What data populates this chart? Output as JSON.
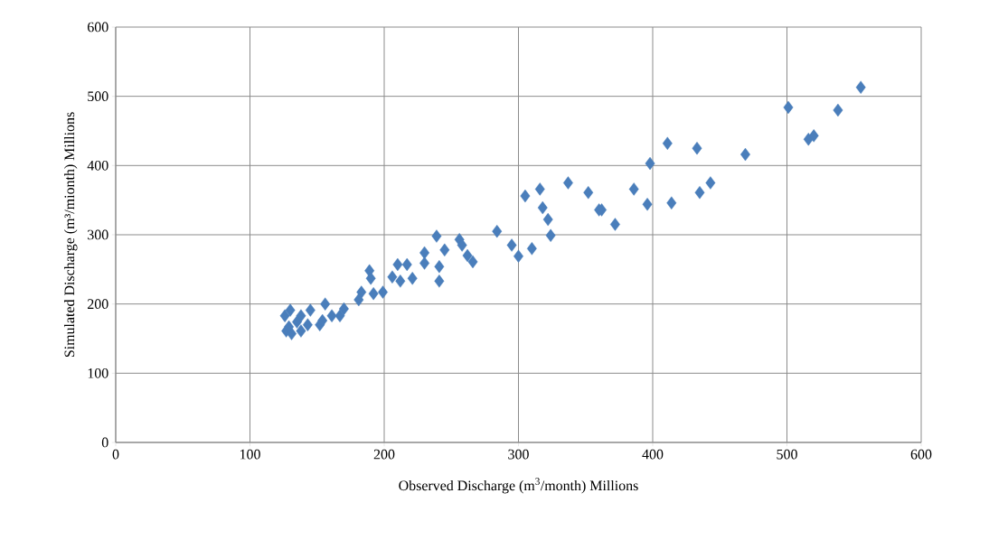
{
  "chart_data": {
    "type": "scatter",
    "xlabel": "Observed Discharge (m$^{3}$/month)  Millions",
    "ylabel": "Simulated Discharge (m³/mionth)  Millions",
    "x": [
      555,
      501,
      538,
      516,
      520,
      469,
      433,
      411,
      398,
      386,
      396,
      414,
      435,
      443,
      362,
      284,
      295,
      300,
      310,
      305,
      316,
      318,
      322,
      324,
      337,
      352,
      360,
      372,
      239,
      256,
      258,
      230,
      245,
      266,
      262,
      230,
      241,
      241,
      210,
      217,
      221,
      206,
      212,
      189,
      190,
      199,
      192,
      183,
      181,
      170,
      167,
      156,
      152,
      145,
      138,
      130,
      126,
      127,
      131,
      138,
      143,
      161,
      154,
      135,
      129
    ],
    "values": [
      513,
      484,
      480,
      438,
      443,
      416,
      425,
      432,
      403,
      366,
      344,
      346,
      361,
      375,
      336,
      305,
      285,
      269,
      280,
      356,
      366,
      339,
      322,
      299,
      375,
      361,
      336,
      315,
      298,
      293,
      285,
      274,
      278,
      261,
      270,
      259,
      254,
      233,
      257,
      257,
      237,
      239,
      233,
      248,
      237,
      217,
      215,
      217,
      206,
      193,
      183,
      200,
      170,
      191,
      183,
      191,
      183,
      161,
      157,
      161,
      170,
      183,
      176,
      174,
      167
    ],
    "color": "#4a7ebb",
    "marker": "diamond",
    "grid": true,
    "xlim": [
      0,
      600
    ],
    "ylim": [
      0,
      600
    ],
    "xticks": [
      0,
      100,
      200,
      300,
      400,
      500,
      600
    ],
    "yticks": [
      0,
      100,
      200,
      300,
      400,
      500,
      600
    ]
  }
}
